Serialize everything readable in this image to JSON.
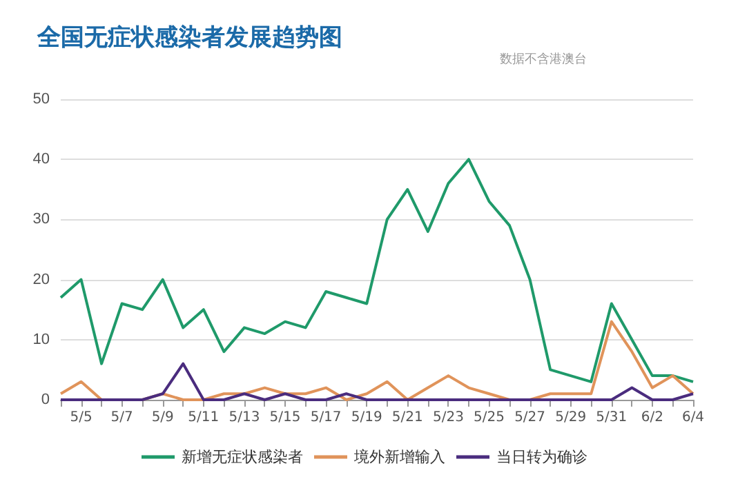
{
  "chart_data": {
    "type": "line",
    "title": "全国无症状感染者发展趋势图",
    "annotations": [
      "数据不含港澳台"
    ],
    "categories": [
      null,
      "5/5",
      null,
      "5/7",
      null,
      "5/9",
      null,
      "5/11",
      null,
      "5/13",
      null,
      "5/15",
      null,
      "5/17",
      null,
      "5/19",
      null,
      "5/21",
      null,
      "5/23",
      null,
      "5/25",
      null,
      "5/27",
      null,
      "5/29",
      null,
      "5/31",
      null,
      "6/2",
      null,
      "6/4"
    ],
    "series": [
      {
        "name": "新增无症状感染者",
        "color": "#1f9a6a",
        "values": [
          17,
          20,
          6,
          16,
          15,
          20,
          12,
          15,
          8,
          12,
          11,
          13,
          12,
          18,
          17,
          16,
          30,
          35,
          28,
          36,
          40,
          33,
          29,
          20,
          5,
          4,
          3,
          16,
          10,
          4,
          4,
          3
        ]
      },
      {
        "name": "境外新增输入",
        "color": "#e0935a",
        "values": [
          1,
          3,
          0,
          0,
          0,
          1,
          0,
          0,
          1,
          1,
          2,
          1,
          1,
          2,
          0,
          1,
          3,
          0,
          2,
          4,
          2,
          1,
          0,
          0,
          1,
          1,
          1,
          13,
          8,
          2,
          4,
          1
        ]
      },
      {
        "name": "当日转为确诊",
        "color": "#4a2c7e",
        "values": [
          0,
          0,
          0,
          0,
          0,
          1,
          6,
          0,
          0,
          1,
          0,
          1,
          0,
          0,
          1,
          0,
          0,
          0,
          0,
          0,
          0,
          0,
          0,
          0,
          0,
          0,
          0,
          0,
          2,
          0,
          0,
          1
        ]
      }
    ],
    "ylim": [
      0,
      50
    ],
    "yticks": [
      0,
      10,
      20,
      30,
      40,
      50
    ],
    "grid": "y",
    "legend": "bottom",
    "marker": "none",
    "line_style": "solid"
  }
}
